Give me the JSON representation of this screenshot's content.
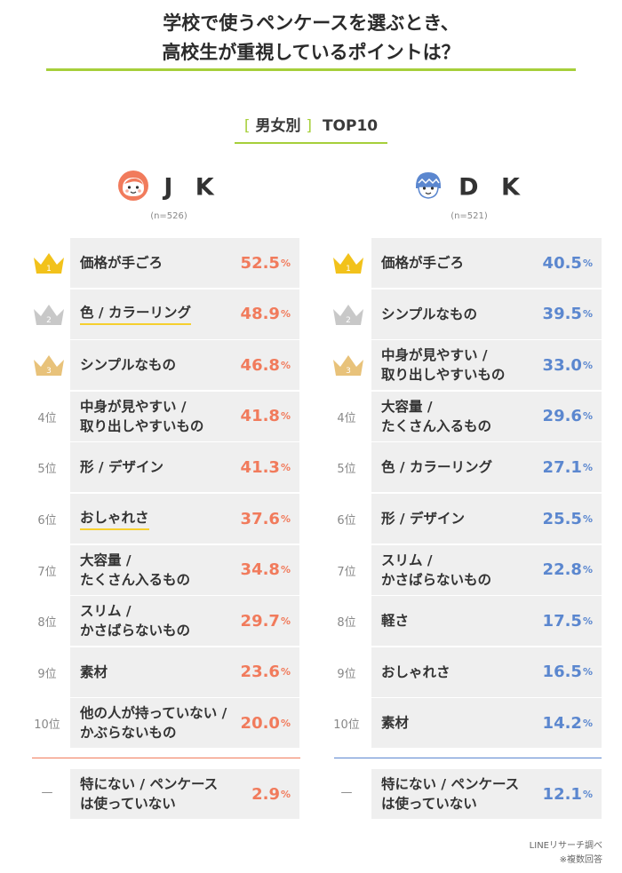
{
  "title_line1": "学校で使うペンケースを選ぶとき、",
  "title_line2": "高校生が重視しているポイントは？",
  "subtitle_open": "[",
  "subtitle_main": "男女別",
  "subtitle_close": "]",
  "subtitle_top": "TOP10",
  "colors": {
    "accent": "#a6cf3a",
    "jk": "#f17b5c",
    "dk": "#5b87cf",
    "highlight": "#f6cf2e",
    "gold": "#f2c21b",
    "silver": "#c8c8c8",
    "bronze": "#e8c27a"
  },
  "ranks": [
    "1",
    "2",
    "3",
    "4位",
    "5位",
    "6位",
    "7位",
    "8位",
    "9位",
    "10位",
    "—"
  ],
  "chart_data": [
    {
      "type": "table",
      "title": "J K",
      "n": "(n=526)",
      "unit": "%",
      "categories": [
        "価格が手ごろ",
        "色 / カラーリング",
        "シンプルなもの",
        "中身が見やすい /\n取り出しやすいもの",
        "形 / デザイン",
        "おしゃれさ",
        "大容量 /\nたくさん入るもの",
        "スリム /\nかさばらないもの",
        "素材",
        "他の人が持っていない /\nかぶらないもの",
        "特にない / ペンケース\nは使っていない"
      ],
      "values": [
        52.5,
        48.9,
        46.8,
        41.8,
        41.3,
        37.6,
        34.8,
        29.7,
        23.6,
        20.0,
        2.9
      ],
      "value_labels": [
        "52.5",
        "48.9",
        "46.8",
        "41.8",
        "41.3",
        "37.6",
        "34.8",
        "29.7",
        "23.6",
        "20.0",
        "2.9"
      ],
      "highlighted": [
        false,
        true,
        false,
        false,
        false,
        true,
        false,
        false,
        false,
        false,
        false
      ]
    },
    {
      "type": "table",
      "title": "D K",
      "n": "(n=521)",
      "unit": "%",
      "categories": [
        "価格が手ごろ",
        "シンプルなもの",
        "中身が見やすい /\n取り出しやすいもの",
        "大容量 /\nたくさん入るもの",
        "色 / カラーリング",
        "形 / デザイン",
        "スリム /\nかさばらないもの",
        "軽さ",
        "おしゃれさ",
        "素材",
        "特にない / ペンケース\nは使っていない"
      ],
      "values": [
        40.5,
        39.5,
        33.0,
        29.6,
        27.1,
        25.5,
        22.8,
        17.5,
        16.5,
        14.2,
        12.1
      ],
      "value_labels": [
        "40.5",
        "39.5",
        "33.0",
        "29.6",
        "27.1",
        "25.5",
        "22.8",
        "17.5",
        "16.5",
        "14.2",
        "12.1"
      ],
      "highlighted": [
        false,
        false,
        false,
        false,
        false,
        false,
        false,
        false,
        false,
        false,
        false
      ]
    }
  ],
  "footer_source": "LINEリサーチ調べ",
  "footer_note": "※複数回答"
}
